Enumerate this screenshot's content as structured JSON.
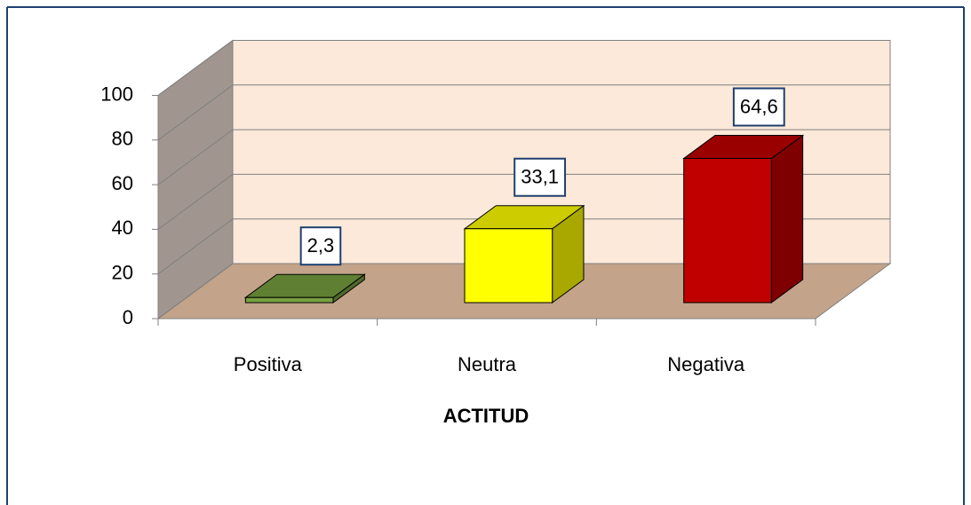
{
  "chart_data": {
    "type": "bar",
    "categories": [
      "Positiva",
      "Neutra",
      "Negativa"
    ],
    "values": [
      2.3,
      33.1,
      64.6
    ],
    "value_labels": [
      "2,3",
      "33,1",
      "64,6"
    ],
    "colors": [
      "#77a040",
      "#ffff00",
      "#c00000"
    ],
    "x_label": "ACTITUD",
    "ylim": [
      0,
      100
    ],
    "yticks": [
      0,
      20,
      40,
      60,
      80,
      100
    ],
    "grid": true
  }
}
